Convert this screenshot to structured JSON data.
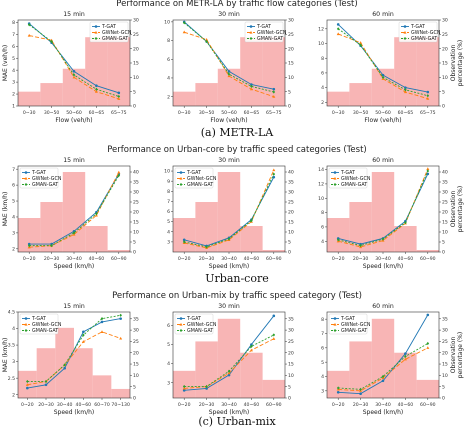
{
  "colors": {
    "tgat": "#1f77b4",
    "gwnet": "#ff7f0e",
    "gman": "#2ca02c",
    "bars": "#f7a8a8",
    "axis": "#333333"
  },
  "legend": [
    "T-GAT",
    "GWNet-GCN",
    "GMAN-GAT"
  ],
  "rows": [
    {
      "title": "Performance on METR-LA by traffic flow categories (Test)",
      "caption": "(a)  METR-LA",
      "xlabel": "Flow (veh/h)",
      "ylabel": "MAE (veh/h)",
      "y2label": "Observation\npercentage (%)",
      "categories": [
        "0~30",
        "30~50",
        "50~60",
        "60~65",
        "65~75"
      ],
      "legend_pos": "top-right",
      "chart_data": [
        {
          "type": "line",
          "title": "15 min",
          "ylim": [
            1,
            8.2
          ],
          "yticks": [
            1,
            2,
            3,
            4,
            5,
            6,
            7,
            8
          ],
          "y2lim": [
            0,
            30
          ],
          "y2ticks": [
            0,
            5,
            10,
            15,
            20,
            25,
            30
          ],
          "bars": [
            5,
            8,
            13,
            24,
            24
          ],
          "series": [
            {
              "name": "T-GAT",
              "values": [
                7.9,
                6.3,
                3.9,
                2.7,
                2.1
              ]
            },
            {
              "name": "GWNet-GCN",
              "values": [
                6.9,
                6.5,
                3.4,
                2.2,
                1.6
              ]
            },
            {
              "name": "GMAN-GAT",
              "values": [
                7.8,
                6.4,
                3.6,
                2.4,
                1.8
              ]
            }
          ]
        },
        {
          "type": "line",
          "title": "30 min",
          "ylim": [
            1,
            10.2
          ],
          "yticks": [
            2,
            4,
            6,
            8,
            10
          ],
          "y2lim": [
            0,
            30
          ],
          "y2ticks": [
            0,
            5,
            10,
            15,
            20,
            25,
            30
          ],
          "bars": [
            5,
            8,
            13,
            24,
            24
          ],
          "series": [
            {
              "name": "T-GAT",
              "values": [
                10,
                7.9,
                4.7,
                3.3,
                2.8
              ]
            },
            {
              "name": "GWNet-GCN",
              "values": [
                8.9,
                8.1,
                4.2,
                2.8,
                2.0
              ]
            },
            {
              "name": "GMAN-GAT",
              "values": [
                9.9,
                7.9,
                4.4,
                3.1,
                2.5
              ]
            }
          ]
        },
        {
          "type": "line",
          "title": "60 min",
          "ylim": [
            1.5,
            13.2
          ],
          "yticks": [
            2,
            4,
            6,
            8,
            10,
            12
          ],
          "y2lim": [
            0,
            30
          ],
          "y2ticks": [
            0,
            5,
            10,
            15,
            20,
            25,
            30
          ],
          "bars": [
            5,
            8,
            13,
            24,
            24
          ],
          "series": [
            {
              "name": "T-GAT",
              "values": [
                12.6,
                9.7,
                5.7,
                4.0,
                3.4
              ]
            },
            {
              "name": "GWNet-GCN",
              "values": [
                11.3,
                10.1,
                5.2,
                3.4,
                2.5
              ]
            },
            {
              "name": "GMAN-GAT",
              "values": [
                12.0,
                9.8,
                5.4,
                3.7,
                2.9
              ]
            }
          ]
        }
      ]
    },
    {
      "title": "Performance on Urban-core by traffic speed categories (Test)",
      "caption": "Urban-core",
      "xlabel": "Speed (km/h)",
      "ylabel": "MAE (km/h)",
      "y2label": "Observation\npercentage (%)",
      "categories": [
        "0~20",
        "20~30",
        "30~40",
        "40~60",
        "60~90"
      ],
      "legend_pos": "top-left",
      "chart_data": [
        {
          "type": "line",
          "title": "15 min",
          "ylim": [
            1.8,
            7.2
          ],
          "yticks": [
            2,
            3,
            4,
            5,
            6,
            7
          ],
          "y2lim": [
            0,
            43
          ],
          "y2ticks": [
            0,
            5,
            10,
            15,
            20,
            25,
            30,
            35,
            40
          ],
          "bars": [
            17,
            25,
            40,
            13,
            1
          ],
          "series": [
            {
              "name": "T-GAT",
              "values": [
                2.3,
                2.3,
                3.1,
                4.3,
                6.7
              ]
            },
            {
              "name": "GWNet-GCN",
              "values": [
                2.1,
                2.2,
                2.9,
                4.1,
                6.8
              ]
            },
            {
              "name": "GMAN-GAT",
              "values": [
                2.2,
                2.2,
                3.0,
                4.2,
                6.6
              ]
            }
          ]
        },
        {
          "type": "line",
          "title": "30 min",
          "ylim": [
            2,
            10.5
          ],
          "yticks": [
            3,
            4,
            5,
            6,
            7,
            8,
            9,
            10
          ],
          "y2lim": [
            0,
            43
          ],
          "y2ticks": [
            0,
            5,
            10,
            15,
            20,
            25,
            30,
            35,
            40
          ],
          "bars": [
            17,
            25,
            40,
            13,
            1
          ],
          "series": [
            {
              "name": "T-GAT",
              "values": [
                3.2,
                2.6,
                3.4,
                5.2,
                9.4
              ]
            },
            {
              "name": "GWNet-GCN",
              "values": [
                2.9,
                2.4,
                3.2,
                5.0,
                10.1
              ]
            },
            {
              "name": "GMAN-GAT",
              "values": [
                3.0,
                2.5,
                3.3,
                5.1,
                9.7
              ]
            }
          ]
        },
        {
          "type": "line",
          "title": "60 min",
          "ylim": [
            2.5,
            14.5
          ],
          "yticks": [
            4,
            6,
            8,
            10,
            12,
            14
          ],
          "y2lim": [
            0,
            43
          ],
          "y2ticks": [
            0,
            5,
            10,
            15,
            20,
            25,
            30,
            35,
            40
          ],
          "bars": [
            17,
            25,
            40,
            13,
            1
          ],
          "series": [
            {
              "name": "T-GAT",
              "values": [
                4.4,
                3.6,
                4.4,
                6.8,
                13.4
              ]
            },
            {
              "name": "GWNet-GCN",
              "values": [
                4.0,
                3.2,
                4.1,
                6.5,
                14.1
              ]
            },
            {
              "name": "GMAN-GAT",
              "values": [
                4.2,
                3.4,
                4.3,
                6.6,
                13.8
              ]
            }
          ]
        }
      ]
    },
    {
      "title": "Performance on Urban-mix by traffic speed category (Test)",
      "caption": "(c)  Urban-mix",
      "xlabel": "Speed (km/h)",
      "ylabel": "MAE (km/h)",
      "y2label": "Observation\npercentage (%)",
      "categories": [],
      "legend_pos": "top-left",
      "chart_data": [
        {
          "type": "line",
          "title": "15 min",
          "categories": [
            "0~20",
            "20~30",
            "30~40",
            "40~60",
            "60~70",
            "70~130"
          ],
          "ylim": [
            1.9,
            4.5
          ],
          "yticks": [
            2.0,
            2.5,
            3.0,
            3.5,
            4.0,
            4.5
          ],
          "y2lim": [
            0,
            38
          ],
          "y2ticks": [
            0,
            5,
            10,
            15,
            20,
            25,
            30,
            35
          ],
          "bars": [
            12,
            22,
            31,
            22,
            10,
            4
          ],
          "series": [
            {
              "name": "T-GAT",
              "values": [
                2.2,
                2.3,
                2.8,
                3.9,
                4.2,
                4.3
              ]
            },
            {
              "name": "GWNet-GCN",
              "values": [
                2.3,
                2.4,
                2.9,
                3.6,
                3.9,
                3.7
              ]
            },
            {
              "name": "GMAN-GAT",
              "values": [
                2.4,
                2.4,
                2.9,
                3.8,
                4.3,
                4.4
              ]
            }
          ]
        },
        {
          "type": "line",
          "title": "30 min",
          "categories": [
            "0~20",
            "20~30",
            "30~40",
            "40~60",
            "60~90"
          ],
          "ylim": [
            2.2,
            6.7
          ],
          "yticks": [
            3,
            4,
            5,
            6
          ],
          "y2lim": [
            0,
            38
          ],
          "y2ticks": [
            0,
            5,
            10,
            15,
            20,
            25,
            30,
            35
          ],
          "bars": [
            12,
            25,
            35,
            20,
            8
          ],
          "series": [
            {
              "name": "T-GAT",
              "values": [
                2.6,
                2.7,
                3.4,
                5.0,
                6.5
              ]
            },
            {
              "name": "GWNet-GCN",
              "values": [
                2.7,
                2.8,
                3.5,
                4.7,
                5.3
              ]
            },
            {
              "name": "GMAN-GAT",
              "values": [
                2.8,
                2.8,
                3.6,
                4.9,
                5.5
              ]
            }
          ]
        },
        {
          "type": "line",
          "title": "60 min",
          "categories": [
            "0~20",
            "20~30",
            "30~40",
            "40~60",
            "60~90"
          ],
          "ylim": [
            2.5,
            8.5
          ],
          "yticks": [
            3,
            4,
            5,
            6,
            7,
            8
          ],
          "y2lim": [
            0,
            38
          ],
          "y2ticks": [
            0,
            5,
            10,
            15,
            20,
            25,
            30,
            35
          ],
          "bars": [
            12,
            25,
            35,
            20,
            8
          ],
          "series": [
            {
              "name": "T-GAT",
              "values": [
                2.9,
                2.8,
                3.7,
                5.6,
                8.3
              ]
            },
            {
              "name": "GWNet-GCN",
              "values": [
                3.1,
                3.0,
                3.9,
                5.2,
                6.0
              ]
            },
            {
              "name": "GMAN-GAT",
              "values": [
                3.2,
                3.1,
                4.0,
                5.4,
                6.3
              ]
            }
          ]
        }
      ]
    }
  ]
}
